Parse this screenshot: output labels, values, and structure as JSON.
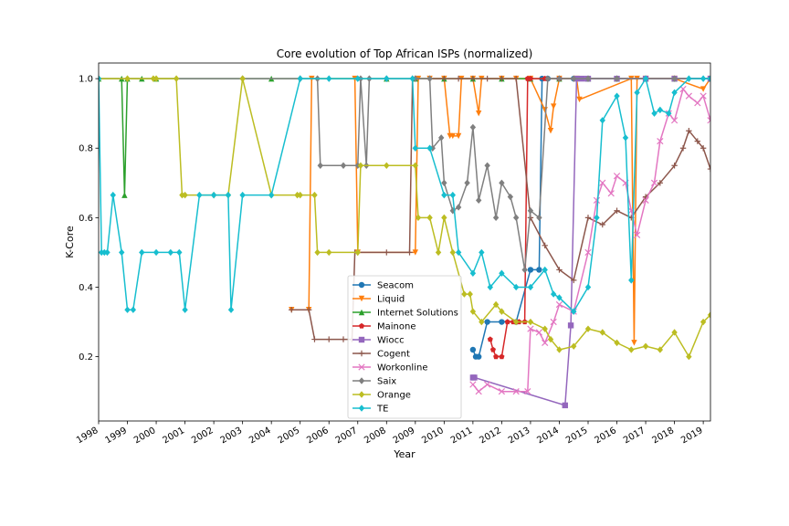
{
  "chart_data": {
    "type": "line",
    "title": "Core evolution of Top African ISPs (normalized)",
    "xlabel": "Year",
    "ylabel": "K-Core",
    "xlim": [
      1998.0,
      2019.25
    ],
    "ylim": [
      0.015,
      1.045
    ],
    "x_ticks": [
      "1998",
      "1999",
      "2000",
      "2001",
      "2002",
      "2003",
      "2004",
      "2005",
      "2006",
      "2007",
      "2008",
      "2009",
      "2010",
      "2011",
      "2012",
      "2013",
      "2014",
      "2015",
      "2016",
      "2017",
      "2018",
      "2019"
    ],
    "y_ticks": [
      "0.2",
      "0.4",
      "0.6",
      "0.8",
      "1.0"
    ],
    "legend_position": "lower-center",
    "series": [
      {
        "name": "Seacom",
        "color": "#1f77b4",
        "marker": "circle",
        "x": [
          2011.0,
          2011.1,
          2011.2,
          2011.5,
          2012.0,
          2012.5,
          2013.0,
          2013.3,
          2013.4,
          2013.6,
          2014.0,
          2014.5,
          2015.0,
          2016.0,
          2017.0,
          2018.0,
          2019.25
        ],
        "y": [
          0.22,
          0.2,
          0.2,
          0.3,
          0.3,
          0.3,
          0.45,
          0.45,
          1.0,
          1.0,
          1.0,
          1.0,
          1.0,
          1.0,
          1.0,
          1.0,
          1.0
        ]
      },
      {
        "name": "Liquid",
        "color": "#ff7f0e",
        "marker": "triangle-down",
        "x": [
          2004.7,
          2005.3,
          2005.4,
          2006.9,
          2007.0,
          2009.0,
          2009.1,
          2009.5,
          2010.0,
          2010.2,
          2010.3,
          2010.5,
          2010.6,
          2011.0,
          2011.2,
          2011.3,
          2012.0,
          2012.5,
          2013.0,
          2013.5,
          2013.7,
          2013.8,
          2014.0,
          2014.6,
          2014.7,
          2016.5,
          2016.6,
          2016.7,
          2017.0,
          2018.0,
          2019.0,
          2019.25
        ],
        "y": [
          0.335,
          0.335,
          1.0,
          1.0,
          0.5,
          0.5,
          1.0,
          1.0,
          1.0,
          0.835,
          0.835,
          0.835,
          1.0,
          1.0,
          0.9,
          1.0,
          1.0,
          1.0,
          1.0,
          0.91,
          0.85,
          0.92,
          1.0,
          1.0,
          0.94,
          1.0,
          0.24,
          1.0,
          1.0,
          1.0,
          0.97,
          1.0
        ]
      },
      {
        "name": "Internet Solutions",
        "color": "#2ca02c",
        "marker": "triangle-up",
        "x": [
          1998.0,
          1998.8,
          1998.9,
          1999.0,
          1999.5,
          2000.0,
          2004.0,
          2008.0,
          2009.0,
          2010.0,
          2011.0,
          2012.0,
          2013.0,
          2014.0,
          2015.0,
          2016.0,
          2017.0,
          2018.0,
          2019.25
        ],
        "y": [
          1.0,
          1.0,
          0.665,
          1.0,
          1.0,
          1.0,
          1.0,
          1.0,
          1.0,
          1.0,
          1.0,
          1.0,
          1.0,
          1.0,
          1.0,
          1.0,
          1.0,
          1.0,
          1.0
        ]
      },
      {
        "name": "Mainone",
        "color": "#d62728",
        "marker": "pentagon",
        "x": [
          2011.6,
          2011.7,
          2011.8,
          2012.0,
          2012.2,
          2012.4,
          2012.6,
          2012.8,
          2012.9,
          2013.0,
          2013.5,
          2014.0,
          2015.0,
          2016.0,
          2017.0,
          2018.0,
          2019.25
        ],
        "y": [
          0.25,
          0.22,
          0.2,
          0.2,
          0.3,
          0.3,
          0.3,
          0.3,
          1.0,
          1.0,
          1.0,
          1.0,
          1.0,
          1.0,
          1.0,
          1.0,
          1.0
        ]
      },
      {
        "name": "Wiocc",
        "color": "#9467bd",
        "marker": "square",
        "x": [
          2011.0,
          2011.05,
          2014.2,
          2014.4,
          2014.6,
          2014.8,
          2015.0,
          2016.0,
          2017.0,
          2018.0,
          2019.25
        ],
        "y": [
          0.14,
          0.14,
          0.06,
          0.29,
          1.0,
          1.0,
          1.0,
          1.0,
          1.0,
          1.0,
          1.0
        ]
      },
      {
        "name": "Cogent",
        "color": "#8c564b",
        "marker": "plus",
        "x": [
          2004.7,
          2005.3,
          2005.5,
          2006.0,
          2006.5,
          2006.8,
          2006.9,
          2007.0,
          2008.0,
          2008.8,
          2008.9,
          2009.0,
          2010.0,
          2010.5,
          2011.0,
          2011.5,
          2012.0,
          2012.5,
          2013.0,
          2013.5,
          2014.0,
          2014.5,
          2015.0,
          2015.5,
          2016.0,
          2016.5,
          2017.0,
          2017.5,
          2018.0,
          2018.3,
          2018.5,
          2018.8,
          2019.0,
          2019.25
        ],
        "y": [
          0.335,
          0.335,
          0.25,
          0.25,
          0.25,
          0.25,
          0.5,
          0.5,
          0.5,
          0.5,
          1.0,
          1.0,
          1.0,
          1.0,
          1.0,
          1.0,
          1.0,
          1.0,
          0.6,
          0.52,
          0.45,
          0.42,
          0.6,
          0.58,
          0.62,
          0.6,
          0.66,
          0.7,
          0.75,
          0.8,
          0.85,
          0.82,
          0.8,
          0.74
        ]
      },
      {
        "name": "Workonline",
        "color": "#e377c2",
        "marker": "x",
        "x": [
          2011.0,
          2011.2,
          2011.5,
          2012.0,
          2012.5,
          2012.9,
          2013.0,
          2013.3,
          2013.5,
          2013.8,
          2014.0,
          2014.5,
          2015.0,
          2015.3,
          2015.5,
          2015.8,
          2016.0,
          2016.3,
          2016.5,
          2016.7,
          2017.0,
          2017.3,
          2017.5,
          2017.8,
          2018.0,
          2018.3,
          2018.5,
          2018.8,
          2019.0,
          2019.25
        ],
        "y": [
          0.12,
          0.1,
          0.12,
          0.1,
          0.1,
          0.1,
          0.28,
          0.27,
          0.24,
          0.3,
          0.35,
          0.33,
          0.5,
          0.65,
          0.7,
          0.67,
          0.72,
          0.7,
          0.62,
          0.55,
          0.65,
          0.7,
          0.82,
          0.9,
          0.88,
          0.97,
          0.95,
          0.93,
          0.95,
          0.88
        ]
      },
      {
        "name": "Saix",
        "color": "#7f7f7f",
        "marker": "diamond",
        "x": [
          1998.0,
          2003.0,
          2005.0,
          2005.6,
          2005.7,
          2006.5,
          2007.0,
          2007.1,
          2007.3,
          2007.4,
          2008.0,
          2009.0,
          2009.5,
          2009.6,
          2009.9,
          2010.0,
          2010.3,
          2010.5,
          2010.8,
          2011.0,
          2011.2,
          2011.5,
          2011.8,
          2012.0,
          2012.3,
          2012.5,
          2012.8,
          2013.0,
          2013.3,
          2013.6,
          2014.0,
          2014.5,
          2015.0,
          2016.0,
          2017.0,
          2018.0,
          2019.25
        ],
        "y": [
          1.0,
          1.0,
          1.0,
          1.0,
          0.75,
          0.75,
          0.75,
          1.0,
          0.75,
          1.0,
          1.0,
          1.0,
          1.0,
          0.8,
          0.83,
          0.7,
          0.62,
          0.63,
          0.7,
          0.86,
          0.65,
          0.75,
          0.6,
          0.7,
          0.66,
          0.6,
          0.45,
          0.62,
          0.6,
          1.0,
          1.0,
          1.0,
          1.0,
          1.0,
          1.0,
          1.0,
          1.0
        ]
      },
      {
        "name": "Orange",
        "color": "#bcbd22",
        "marker": "diamond",
        "x": [
          1998.0,
          1999.0,
          1999.9,
          2000.0,
          2000.7,
          2000.9,
          2001.0,
          2002.0,
          2002.5,
          2003.0,
          2004.0,
          2004.9,
          2005.0,
          2005.5,
          2005.6,
          2006.0,
          2007.0,
          2007.1,
          2008.0,
          2009.0,
          2009.1,
          2009.5,
          2009.8,
          2010.0,
          2010.3,
          2010.7,
          2010.9,
          2011.0,
          2011.3,
          2011.8,
          2012.0,
          2012.5,
          2013.0,
          2013.5,
          2013.7,
          2014.0,
          2014.5,
          2015.0,
          2015.5,
          2016.0,
          2016.5,
          2017.0,
          2017.5,
          2018.0,
          2018.5,
          2019.0,
          2019.25
        ],
        "y": [
          1.0,
          1.0,
          1.0,
          1.0,
          1.0,
          0.665,
          0.665,
          0.665,
          0.665,
          1.0,
          0.665,
          0.665,
          0.665,
          0.665,
          0.5,
          0.5,
          0.5,
          0.75,
          0.75,
          0.75,
          0.6,
          0.6,
          0.5,
          0.6,
          0.5,
          0.38,
          0.38,
          0.33,
          0.3,
          0.35,
          0.33,
          0.3,
          0.3,
          0.28,
          0.25,
          0.22,
          0.23,
          0.28,
          0.27,
          0.24,
          0.22,
          0.23,
          0.22,
          0.27,
          0.2,
          0.3,
          0.32
        ]
      },
      {
        "name": "TE",
        "color": "#17becf",
        "marker": "diamond",
        "x": [
          1998.0,
          1998.1,
          1998.2,
          1998.3,
          1998.5,
          1998.8,
          1999.0,
          1999.2,
          1999.5,
          2000.0,
          2000.5,
          2000.8,
          2001.0,
          2001.5,
          2002.0,
          2002.5,
          2002.6,
          2003.0,
          2004.0,
          2005.0,
          2006.0,
          2007.0,
          2008.0,
          2008.9,
          2009.0,
          2009.5,
          2010.0,
          2010.3,
          2010.5,
          2011.0,
          2011.3,
          2011.6,
          2012.0,
          2012.5,
          2013.0,
          2013.5,
          2013.8,
          2014.0,
          2014.5,
          2015.0,
          2015.3,
          2015.5,
          2016.0,
          2016.3,
          2016.5,
          2016.7,
          2017.0,
          2017.3,
          2017.5,
          2017.8,
          2018.0,
          2018.5,
          2019.0,
          2019.25
        ],
        "y": [
          1.0,
          0.5,
          0.5,
          0.5,
          0.665,
          0.5,
          0.335,
          0.335,
          0.5,
          0.5,
          0.5,
          0.5,
          0.335,
          0.665,
          0.665,
          0.665,
          0.335,
          0.665,
          0.665,
          1.0,
          1.0,
          1.0,
          1.0,
          1.0,
          0.8,
          0.8,
          0.665,
          0.665,
          0.5,
          0.44,
          0.5,
          0.4,
          0.44,
          0.4,
          0.4,
          0.45,
          0.38,
          0.37,
          0.33,
          0.4,
          0.6,
          0.88,
          0.95,
          0.83,
          0.42,
          0.96,
          1.0,
          0.9,
          0.91,
          0.9,
          0.96,
          1.0,
          1.0,
          1.0
        ]
      }
    ]
  }
}
